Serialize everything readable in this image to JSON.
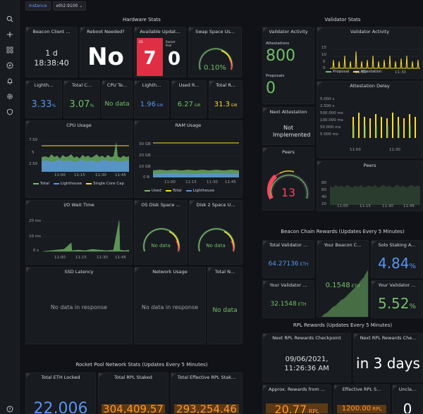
{
  "nav": {
    "icons": [
      "search-icon",
      "plus-icon",
      "dashboards-icon",
      "explore-icon",
      "alert-bell-icon",
      "settings-gear-icon",
      "shield-icon",
      "help-icon"
    ]
  },
  "toolbar": {
    "instance_label": "Instance",
    "instance_value": "eth2:9100"
  },
  "sections": {
    "hardware": "Hardware Stats",
    "validator": "Validator Stats",
    "beacon_rewards": "Beacon Chain Rewards (Updates Every 5 Minutes)",
    "rpl_rewards": "RPL Rewards (Updates Every 5 Minutes)",
    "rocketpool": "Rocket Pool Network Stats (Updates Every 5 Minutes)"
  },
  "panels": {
    "beacon_client": {
      "title": "Beacon Client ...",
      "line1": "1 d",
      "line2": "18:38:40"
    },
    "reboot": {
      "title": "Reboot Needed?",
      "value": "No"
    },
    "updates": {
      "title": "Available Updat...",
      "os_label": "OS",
      "os_value": "7",
      "rp_label": "Rocket Pool",
      "rp_value": "0"
    },
    "swap": {
      "title": "Swap Space Us...",
      "value": "0.10%"
    },
    "lighthouse_cpu": {
      "title": "Lighth...",
      "value": "3.33",
      "unit": "%"
    },
    "total_cpu": {
      "title": "Total C...",
      "value": "3.07",
      "unit": "%"
    },
    "cpu_temp": {
      "title": "CPU Te...",
      "value": "No data"
    },
    "lighthouse_ram": {
      "title": "Lighth...",
      "value": "1.96",
      "unit": " GiB"
    },
    "used_ram": {
      "title": "Used R...",
      "value": "6.27",
      "unit": " GiB"
    },
    "total_ram": {
      "title": "Total R...",
      "value": "31.3",
      "unit": " GiB"
    },
    "cpu_usage": {
      "title": "CPU Usage",
      "yticks": [
        "7.50",
        "5",
        "2.50"
      ],
      "xticks": [
        "11:00",
        "11:15",
        "11:30",
        "11:45"
      ],
      "legend": [
        "Total",
        "Lighthouse",
        "Single Core Cap"
      ]
    },
    "ram_usage": {
      "title": "RAM Usage",
      "yticks": [
        "30 GB",
        "20 GB",
        "10 GB",
        "0 B"
      ],
      "xticks": [
        "11:00",
        "11:15",
        "11:30",
        "11:45"
      ],
      "legend": [
        "Used",
        "Total",
        "Lighthouse"
      ]
    },
    "io_wait": {
      "title": "I/O Wait Time",
      "yticks": [
        "20 ms",
        "10 ms",
        "0 s"
      ],
      "xticks": [
        "11:00",
        "11:15",
        "11:30",
        "11:45"
      ]
    },
    "os_disk": {
      "title": "OS Disk Space ...",
      "value": "No data"
    },
    "disk2": {
      "title": "Disk 2 Space U...",
      "value": "No data"
    },
    "ssd_latency": {
      "title": "SSD Latency",
      "value": "No data in response"
    },
    "network": {
      "title": "Network Usage",
      "value": "No data in response"
    },
    "total_n": {
      "title": "Total N...",
      "value": "No data"
    },
    "validator_activity_stat": {
      "title": "Validator Activity",
      "attest_label": "Attestations",
      "attest_value": "800",
      "proposal_label": "Proposals",
      "proposal_value": "0"
    },
    "validator_activity_chart": {
      "title": "Validator Activity",
      "yticks": [
        "15",
        "10",
        "5",
        "0"
      ],
      "xticks": [
        "11:00",
        "11:30"
      ],
      "legend": [
        "Proposal",
        "Attestation"
      ]
    },
    "attestation_delay": {
      "title": "Attestation Delay",
      "yticks": [
        "5.000 ms",
        "50.000 ms",
        "100.000 ms",
        "500.000 ms",
        "2.500 s",
        "5.000 s"
      ],
      "xticks": [
        "11:00",
        "11:30"
      ]
    },
    "next_attestation": {
      "title": "Next Attestation",
      "value": "Not Implemented"
    },
    "peers_gauge": {
      "title": "Peers",
      "value": "13"
    },
    "peers_chart": {
      "title": "Peers",
      "yticks": [
        "80",
        "60",
        "40",
        "20"
      ],
      "xticks": [
        "11:00",
        "11:15",
        "11:30",
        "11:45"
      ]
    },
    "total_validator": {
      "title": "Total Validator ...",
      "value": "64.27136",
      "unit": " ETH"
    },
    "your_beacon": {
      "title": "Your Beacon C...",
      "value": "0.1548",
      "unit": " ETH"
    },
    "solo_staking": {
      "title": "Solo Staking A...",
      "value": "4.84",
      "unit": "%"
    },
    "your_validator_bal": {
      "title": "Your Validator ...",
      "value": "32.1548",
      "unit": " ETH"
    },
    "your_validator_apr": {
      "title": "Your Validator ...",
      "value": "5.52",
      "unit": "%"
    },
    "next_rpl_checkpoint": {
      "title": "Next RPL Rewards Checkpoint",
      "value": "09/06/2021, 11:26:36 AM"
    },
    "next_rpl_rel": {
      "title": "Next RPL Rewards Che...",
      "value": "in 3 days"
    },
    "total_eth_locked": {
      "title": "Total ETH Locked",
      "value": "22,006"
    },
    "total_rpl_staked": {
      "title": "Total RPL Staked",
      "value": "304,409.57"
    },
    "total_eff_rpl": {
      "title": "Total Effective RPL Stak...",
      "value": "293,254.46"
    },
    "approx_rewards": {
      "title": "Approx. Rewards from ...",
      "value": "20.77",
      "unit": " RPL"
    },
    "effective_rpl": {
      "title": "Effective RPL S...",
      "value": "1200.00",
      "unit": " RPL"
    },
    "unclaimed": {
      "title": "Uncla...",
      "value": "0"
    }
  },
  "colors": {
    "green": "#73bf69",
    "blue": "#5794f2",
    "yellow": "#fade2a",
    "red": "#f2495c",
    "orange": "#ff9830"
  }
}
